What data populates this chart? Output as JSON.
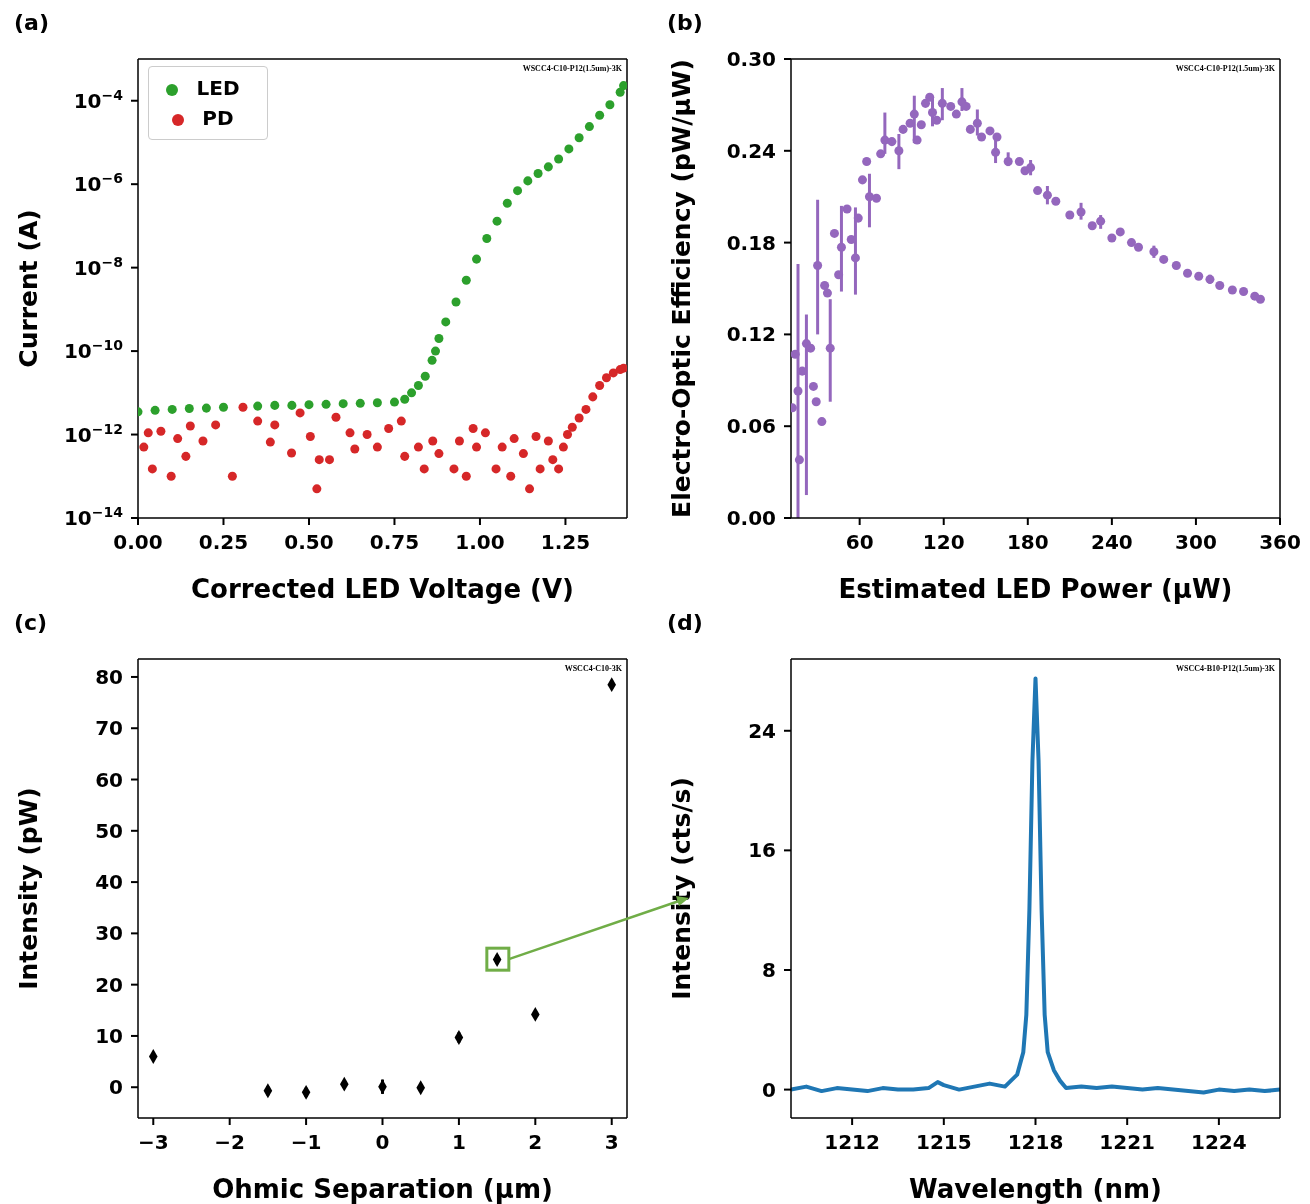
{
  "chart_data": [
    {
      "type": "scatter",
      "title": "(a)",
      "xlabel": "Corrected LED Voltage (V)",
      "ylabel": "Current (A)",
      "log": "y",
      "marker": "circle",
      "legend": "top left",
      "annotations": [
        "WSCC4-C10-P12(1.5um)-3K"
      ],
      "xlim": [
        0,
        1.43
      ],
      "xticks": [
        {
          "value": 0,
          "label": "0.00"
        },
        {
          "value": 0.25,
          "label": "0.25"
        },
        {
          "value": 0.5,
          "label": "0.50"
        },
        {
          "value": 0.75,
          "label": "0.75"
        },
        {
          "value": 1,
          "label": "1.00"
        },
        {
          "value": 1.25,
          "label": "1.25"
        }
      ],
      "ylim": [
        1e-14,
        0.001
      ],
      "yticks": [
        {
          "value": 1e-14,
          "label": "10$^{−14}$"
        },
        {
          "value": 1e-12,
          "label": "10$^{−12}$"
        },
        {
          "value": 1e-10,
          "label": "10$^{−10}$"
        },
        {
          "value": 1e-08,
          "label": "10$^{−8}$"
        },
        {
          "value": 1e-06,
          "label": "10$^{−6}$"
        },
        {
          "value": 0.0001,
          "label": "10$^{−4}$"
        }
      ],
      "series": [
        {
          "name": "LED",
          "color": "#2ca02c",
          "x": [
            0,
            0.05,
            0.1,
            0.15,
            0.2,
            0.25,
            0.3,
            0.35,
            0.4,
            0.45,
            0.5,
            0.55,
            0.6,
            0.65,
            0.7,
            0.75,
            0.78,
            0.8,
            0.82,
            0.84,
            0.86,
            0.87,
            0.88,
            0.9,
            0.93,
            0.96,
            0.99,
            1.02,
            1.05,
            1.08,
            1.11,
            1.14,
            1.17,
            1.2,
            1.23,
            1.26,
            1.29,
            1.32,
            1.35,
            1.38,
            1.41,
            1.42
          ],
          "values": [
            3.5e-12,
            3.8e-12,
            4e-12,
            4.2e-12,
            4.3e-12,
            4.5e-12,
            null,
            4.8e-12,
            5e-12,
            5e-12,
            5.2e-12,
            5.3e-12,
            5.5e-12,
            5.6e-12,
            5.8e-12,
            6e-12,
            7e-12,
            1e-11,
            1.5e-11,
            2.5e-11,
            6e-11,
            1e-10,
            2e-10,
            5e-10,
            1.5e-09,
            5e-09,
            1.6e-08,
            5e-08,
            1.3e-07,
            3.5e-07,
            7e-07,
            1.2e-06,
            1.8e-06,
            2.6e-06,
            4e-06,
            7e-06,
            1.3e-05,
            2.4e-05,
            4.5e-05,
            8e-05,
            0.00016,
            0.00023
          ]
        },
        {
          "name": "PD",
          "color": "#d62728",
          "x": [
            0.017,
            0.03,
            0.042,
            0.067,
            0.097,
            0.116,
            0.14,
            0.153,
            0.19,
            0.227,
            0.276,
            0.307,
            0.35,
            0.387,
            0.4,
            0.449,
            0.474,
            0.504,
            0.523,
            0.53,
            0.56,
            0.579,
            0.62,
            0.634,
            0.67,
            0.7,
            0.733,
            0.77,
            0.78,
            0.82,
            0.837,
            0.862,
            0.88,
            0.924,
            0.94,
            0.96,
            0.98,
            0.99,
            1.016,
            1.047,
            1.065,
            1.09,
            1.1,
            1.127,
            1.145,
            1.164,
            1.176,
            1.2,
            1.213,
            1.23,
            1.244,
            1.256,
            1.27,
            1.29,
            1.31,
            1.33,
            1.35,
            1.37,
            1.39,
            1.41,
            1.42
          ],
          "values": [
            5e-13,
            1.1e-12,
            1.5e-13,
            1.2e-12,
            1e-13,
            8e-13,
            3e-13,
            1.6e-12,
            7e-13,
            1.7e-12,
            1e-13,
            4.5e-12,
            2.1e-12,
            6.6e-13,
            1.7e-12,
            3.6e-13,
            3.3e-12,
            9e-13,
            5e-14,
            2.5e-13,
            2.5e-13,
            2.6e-12,
            1.1e-12,
            4.5e-13,
            1e-12,
            5e-13,
            1.4e-12,
            2.1e-12,
            3e-13,
            5e-13,
            1.5e-13,
            7e-13,
            3.5e-13,
            1.5e-13,
            7e-13,
            1e-13,
            1.4e-12,
            5e-13,
            1.1e-12,
            1.5e-13,
            5e-13,
            1e-13,
            8e-13,
            3.5e-13,
            5e-14,
            9e-13,
            1.5e-13,
            7e-13,
            2.5e-13,
            1.5e-13,
            5e-13,
            1e-12,
            1.5e-12,
            2.5e-12,
            4e-12,
            8e-12,
            1.5e-11,
            2.3e-11,
            3e-11,
            3.6e-11,
            3.9e-11
          ]
        }
      ]
    },
    {
      "type": "scatter",
      "title": "(b)",
      "xlabel": "Estimated LED Power (μW)",
      "ylabel": "Electro-Optic Efficiency (pW/μW)",
      "marker": "circle",
      "color": "#9467bd",
      "annotations": [
        "WSCC4-C10-P12(1.5um)-3K"
      ],
      "xlim": [
        11,
        360
      ],
      "xticks": [
        60,
        120,
        180,
        240,
        300,
        360
      ],
      "ylim": [
        0,
        0.3
      ],
      "yticks": [
        {
          "value": 0,
          "label": "0.00"
        },
        0.06,
        0.12,
        0.18,
        0.24,
        {
          "value": 0.3,
          "label": "0.30"
        }
      ],
      "x": [
        12,
        14,
        16,
        17,
        19,
        22,
        25,
        27,
        29,
        30,
        33,
        35,
        37,
        39,
        42,
        45,
        47,
        51,
        54,
        57,
        59,
        62,
        65,
        67,
        72,
        75,
        78,
        83,
        88,
        91,
        96,
        99,
        101,
        104,
        107,
        110,
        112,
        115,
        119,
        125,
        129,
        133,
        136,
        139,
        144,
        147,
        153,
        158,
        157,
        166,
        174,
        178,
        182,
        187,
        194,
        200,
        210,
        218,
        226,
        232,
        240,
        246,
        254,
        259,
        270,
        277,
        286,
        294,
        302,
        310,
        317,
        326,
        334,
        342,
        346
      ],
      "values": [
        0.072,
        0.107,
        0.083,
        0.038,
        0.096,
        0.114,
        0.111,
        0.086,
        0.076,
        0.165,
        0.063,
        0.152,
        0.147,
        0.111,
        0.186,
        0.159,
        0.177,
        0.202,
        0.182,
        0.17,
        0.196,
        0.221,
        0.233,
        0.21,
        0.209,
        0.238,
        0.247,
        0.246,
        0.24,
        0.254,
        0.258,
        0.264,
        0.247,
        0.257,
        0.271,
        0.275,
        0.265,
        0.26,
        0.271,
        0.269,
        0.264,
        0.272,
        0.269,
        0.254,
        0.258,
        0.249,
        0.253,
        0.249,
        0.239,
        0.233,
        0.233,
        0.227,
        0.229,
        0.214,
        0.211,
        0.207,
        0.198,
        0.2,
        0.191,
        0.194,
        0.183,
        0.187,
        0.18,
        0.177,
        0.174,
        0.169,
        0.165,
        0.16,
        0.158,
        0.156,
        0.152,
        0.149,
        0.148,
        0.145,
        0.143
      ],
      "errors": [
        null,
        null,
        [
          0,
          0.166
        ],
        null,
        null,
        [
          0.015,
          0.133
        ],
        null,
        null,
        null,
        [
          0.12,
          0.208
        ],
        null,
        null,
        null,
        [
          0.076,
          0.143
        ],
        null,
        null,
        [
          0.148,
          0.204
        ],
        null,
        null,
        [
          0.146,
          0.203
        ],
        null,
        null,
        null,
        [
          0.19,
          0.225
        ],
        null,
        null,
        [
          0.238,
          0.265
        ],
        null,
        [
          0.228,
          0.251
        ],
        null,
        null,
        [
          0.245,
          0.276
        ],
        null,
        null,
        null,
        null,
        [
          0.256,
          0.275
        ],
        null,
        [
          0.26,
          0.281
        ],
        null,
        null,
        [
          0.266,
          0.281
        ],
        null,
        null,
        [
          0.25,
          0.267
        ],
        null,
        null,
        null,
        [
          0.232,
          0.247
        ],
        [
          0.23,
          0.239
        ],
        null,
        null,
        [
          0.224,
          0.234
        ],
        null,
        [
          0.205,
          0.217
        ],
        null,
        null,
        [
          0.195,
          0.206
        ],
        null,
        [
          0.189,
          0.198
        ],
        null,
        null,
        null,
        null,
        [
          0.17,
          0.178
        ],
        null,
        null,
        null,
        null,
        [
          0.153,
          0.159
        ],
        null,
        null,
        null,
        null,
        null
      ]
    },
    {
      "type": "scatter",
      "title": "(c)",
      "xlabel": "Ohmic Separation (μm)",
      "ylabel": "Intensity (pW)",
      "marker": "diamond",
      "color": "#000000",
      "annotations": [
        "WSCC4-C10-3K"
      ],
      "xlim": [
        -3.2,
        3.2
      ],
      "xticks": [
        {
          "value": -3,
          "label": "−3"
        },
        {
          "value": -2,
          "label": "−2"
        },
        {
          "value": -1,
          "label": "−1"
        },
        0,
        1,
        2,
        3
      ],
      "ylim": [
        -6,
        83.5
      ],
      "yticks": [
        0,
        10,
        20,
        30,
        40,
        50,
        60,
        70,
        80
      ],
      "x": [
        -3,
        -1.5,
        -1,
        -0.5,
        0,
        0.5,
        1,
        1.5,
        2,
        3
      ],
      "values": [
        6,
        -0.7,
        -1,
        0.6,
        0.1,
        -0.1,
        9.7,
        24.9,
        14.2,
        78.5
      ],
      "errors": [
        0.6,
        0.9,
        0.9,
        0.7,
        1.4,
        0.5,
        1,
        0.9,
        0.6,
        0.8
      ]
    },
    {
      "type": "line",
      "title": "(d)",
      "xlabel": "Wavelength (nm)",
      "ylabel": "Intensity (cts/s)",
      "marker": "none",
      "line_style": "solid",
      "color": "#1f77b4",
      "annotations": [
        "WSCC4-B10-P12(1.5um)-3K"
      ],
      "xlim": [
        1210,
        1226
      ],
      "xticks": [
        1212,
        1215,
        1218,
        1221,
        1224
      ],
      "ylim": [
        -1.9,
        28.8
      ],
      "yticks": [
        0,
        8,
        16,
        24
      ],
      "x": [
        1210,
        1210.5,
        1211,
        1211.5,
        1212,
        1212.5,
        1213,
        1213.5,
        1214,
        1214.5,
        1214.8,
        1215,
        1215.5,
        1216,
        1216.5,
        1217,
        1217.4,
        1217.6,
        1217.7,
        1217.8,
        1217.9,
        1218,
        1218.1,
        1218.2,
        1218.3,
        1218.4,
        1218.6,
        1218.8,
        1219,
        1219.5,
        1220,
        1220.5,
        1221,
        1221.5,
        1222,
        1222.5,
        1223,
        1223.5,
        1224,
        1224.5,
        1225,
        1225.5,
        1226
      ],
      "values": [
        0,
        0.2,
        -0.1,
        0.1,
        0,
        -0.1,
        0.1,
        0,
        0,
        0.1,
        0.5,
        0.3,
        0,
        0.2,
        0.4,
        0.2,
        1,
        2.5,
        5,
        12,
        22,
        27.5,
        22,
        12,
        5,
        2.5,
        1.3,
        0.6,
        0.1,
        0.2,
        0.1,
        0.2,
        0.1,
        0,
        0.1,
        0,
        -0.1,
        -0.2,
        0,
        -0.1,
        0,
        -0.1,
        0
      ]
    }
  ]
}
